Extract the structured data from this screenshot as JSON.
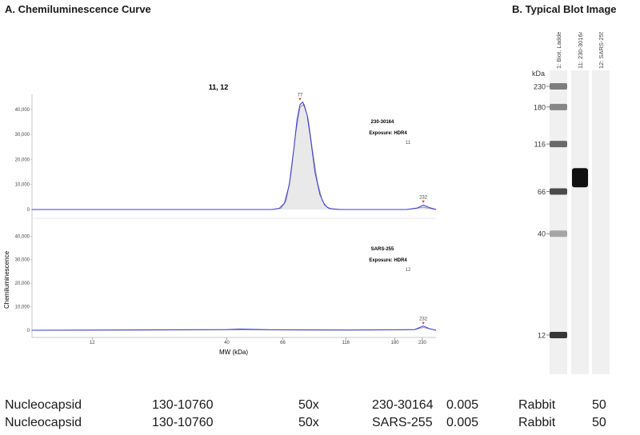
{
  "panel_a_title": "A. Chemiluminescence Curve",
  "panel_b_title": "B.   Typical Blot Image",
  "chart_data": {
    "type": "line",
    "title": "11, 12",
    "xlabel": "MW (kDa)",
    "ylabel": "Chemiluminescence",
    "x_scale": "log",
    "x_ticks": [
      12,
      40,
      66,
      116,
      180,
      230
    ],
    "xlim": [
      7,
      260
    ],
    "ylim": [
      0,
      40000
    ],
    "y_ticks": [
      0,
      10000,
      20000,
      30000,
      40000
    ],
    "y_tick_labels": [
      "0",
      "10,000",
      "20,000",
      "30,000",
      "40,000"
    ],
    "panels": [
      {
        "label_top": "230-30164",
        "label_exposure": "Exposure: HDR4",
        "label_lane": "11",
        "peak_labels": [
          {
            "x": 77,
            "y": 43000,
            "text": "77"
          },
          {
            "x": 232,
            "y": 2000,
            "text": "232"
          }
        ],
        "series": [
          {
            "color": "#3b3bd9",
            "x": [
              7,
              20,
              40,
              60,
              64,
              67,
              70,
              73,
              75,
              77,
              79,
              82,
              85,
              88,
              92,
              96,
              100,
              110,
              130,
              170,
              200,
              220,
              232,
              245,
              260
            ],
            "y": [
              0,
              0,
              0,
              0,
              500,
              2500,
              10000,
              25000,
              36000,
              42000,
              43000,
              38000,
              27000,
              15000,
              6000,
              1800,
              400,
              0,
              0,
              0,
              0,
              600,
              1800,
              800,
              0
            ]
          },
          {
            "color": "#9999aa",
            "x": [
              7,
              20,
              40,
              60,
              65,
              68,
              71,
              74,
              77,
              80,
              83,
              86,
              90,
              94,
              98,
              104,
              115,
              150,
              200,
              232,
              260
            ],
            "y": [
              0,
              0,
              0,
              0,
              500,
              3500,
              14000,
              30000,
              41000,
              42000,
              36000,
              24000,
              11000,
              3500,
              900,
              100,
              0,
              0,
              0,
              900,
              0
            ]
          }
        ]
      },
      {
        "label_top": "SARS-255",
        "label_exposure": "Exposure: HDR4",
        "label_lane": "12",
        "peak_labels": [
          {
            "x": 232,
            "y": 1800,
            "text": "232"
          }
        ],
        "series": [
          {
            "color": "#3b3bd9",
            "x": [
              7,
              20,
              30,
              40,
              45,
              60,
              80,
              120,
              180,
              215,
              232,
              245,
              260
            ],
            "y": [
              0,
              150,
              250,
              300,
              500,
              200,
              150,
              100,
              200,
              300,
              1800,
              700,
              0
            ]
          },
          {
            "color": "#9999aa",
            "x": [
              7,
              20,
              40,
              60,
              80,
              120,
              180,
              215,
              232,
              260
            ],
            "y": [
              0,
              100,
              200,
              150,
              100,
              80,
              150,
              250,
              1200,
              0
            ]
          }
        ]
      }
    ]
  },
  "blot": {
    "kda_label": "kDa",
    "lane_labels": [
      "1: Biot. Ladder",
      "11: 230-30164",
      "12: SARS-255"
    ],
    "markers": [
      "230",
      "180",
      "116",
      "66",
      "40",
      "12"
    ],
    "marker_kda": [
      230,
      180,
      116,
      66,
      40,
      12
    ],
    "ladder_band_intensity": [
      0.55,
      0.5,
      0.65,
      0.8,
      0.35,
      0.9
    ],
    "sample_band": {
      "lane": "11: 230-30164",
      "kda": 77,
      "intensity": 1.0
    }
  },
  "table": [
    {
      "protein": "Nucleocapsid",
      "catalog": "130-10760",
      "dilution": "50x",
      "antibody": "230-30164",
      "conc": "0.005",
      "host": "Rabbit",
      "value": "50"
    },
    {
      "protein": "Nucleocapsid",
      "catalog": "130-10760",
      "dilution": "50x",
      "antibody": "SARS-255",
      "conc": "0.005",
      "host": "Rabbit",
      "value": "50"
    }
  ]
}
